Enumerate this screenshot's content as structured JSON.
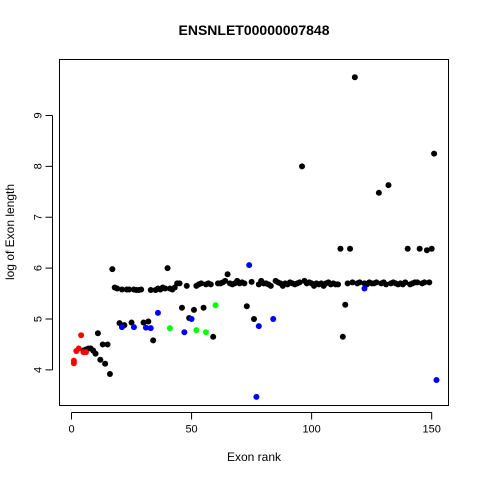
{
  "chart_data": {
    "type": "scatter",
    "title": "ENSNLET00000007848",
    "xlabel": "Exon rank",
    "ylabel": "log of Exon length",
    "xlim": [
      -5,
      157
    ],
    "ylim": [
      3.3,
      10.1
    ],
    "xticks": [
      0,
      50,
      100,
      150
    ],
    "yticks": [
      4,
      5,
      6,
      7,
      8,
      9
    ],
    "grid": false,
    "legend": "none",
    "series": [
      {
        "color": "#000000",
        "points": [
          [
            5,
            4.38
          ],
          [
            6,
            4.4
          ],
          [
            7,
            4.42
          ],
          [
            8,
            4.42
          ],
          [
            9,
            4.38
          ],
          [
            10,
            4.32
          ],
          [
            11,
            4.72
          ],
          [
            12,
            4.2
          ],
          [
            13,
            4.5
          ],
          [
            14,
            4.12
          ],
          [
            15,
            4.5
          ],
          [
            16,
            3.92
          ],
          [
            17,
            5.98
          ],
          [
            18,
            5.62
          ],
          [
            19,
            5.6
          ],
          [
            20,
            4.92
          ],
          [
            21,
            5.58
          ],
          [
            22,
            4.88
          ],
          [
            23,
            5.58
          ],
          [
            24,
            5.58
          ],
          [
            25,
            4.93
          ],
          [
            26,
            5.58
          ],
          [
            27,
            5.57
          ],
          [
            28,
            5.57
          ],
          [
            29,
            5.58
          ],
          [
            30,
            4.93
          ],
          [
            32,
            4.95
          ],
          [
            33,
            5.57
          ],
          [
            34,
            4.58
          ],
          [
            35,
            5.57
          ],
          [
            36,
            5.6
          ],
          [
            37,
            5.58
          ],
          [
            38,
            5.62
          ],
          [
            39,
            5.6
          ],
          [
            40,
            6.0
          ],
          [
            41,
            5.6
          ],
          [
            42,
            5.58
          ],
          [
            43,
            5.62
          ],
          [
            44,
            5.7
          ],
          [
            45,
            5.7
          ],
          [
            46,
            5.22
          ],
          [
            48,
            5.65
          ],
          [
            49,
            5.02
          ],
          [
            51,
            5.18
          ],
          [
            52,
            5.65
          ],
          [
            53,
            5.68
          ],
          [
            54,
            5.7
          ],
          [
            55,
            5.22
          ],
          [
            56,
            5.68
          ],
          [
            57,
            5.7
          ],
          [
            58,
            5.68
          ],
          [
            59,
            4.65
          ],
          [
            61,
            5.7
          ],
          [
            62,
            5.7
          ],
          [
            63,
            5.72
          ],
          [
            64,
            5.75
          ],
          [
            65,
            5.88
          ],
          [
            66,
            5.7
          ],
          [
            67,
            5.68
          ],
          [
            68,
            5.7
          ],
          [
            69,
            5.75
          ],
          [
            70,
            5.7
          ],
          [
            71,
            5.72
          ],
          [
            72,
            5.7
          ],
          [
            73,
            5.25
          ],
          [
            75,
            5.73
          ],
          [
            76,
            5.0
          ],
          [
            78,
            5.68
          ],
          [
            79,
            5.75
          ],
          [
            80,
            5.7
          ],
          [
            81,
            5.7
          ],
          [
            82,
            5.68
          ],
          [
            83,
            5.65
          ],
          [
            85,
            5.75
          ],
          [
            86,
            5.72
          ],
          [
            87,
            5.7
          ],
          [
            88,
            5.65
          ],
          [
            89,
            5.7
          ],
          [
            90,
            5.68
          ],
          [
            91,
            5.72
          ],
          [
            92,
            5.7
          ],
          [
            93,
            5.68
          ],
          [
            94,
            5.7
          ],
          [
            95,
            5.72
          ],
          [
            96,
            8.0
          ],
          [
            97,
            5.75
          ],
          [
            98,
            5.7
          ],
          [
            99,
            5.72
          ],
          [
            100,
            5.7
          ],
          [
            101,
            5.65
          ],
          [
            102,
            5.7
          ],
          [
            103,
            5.68
          ],
          [
            104,
            5.7
          ],
          [
            105,
            5.65
          ],
          [
            106,
            5.7
          ],
          [
            107,
            5.72
          ],
          [
            108,
            5.68
          ],
          [
            109,
            5.7
          ],
          [
            110,
            5.68
          ],
          [
            111,
            5.68
          ],
          [
            112,
            6.38
          ],
          [
            113,
            4.65
          ],
          [
            114,
            5.28
          ],
          [
            115,
            5.7
          ],
          [
            116,
            6.38
          ],
          [
            117,
            5.72
          ],
          [
            118,
            9.75
          ],
          [
            119,
            5.7
          ],
          [
            120,
            5.72
          ],
          [
            122,
            5.7
          ],
          [
            123,
            5.68
          ],
          [
            124,
            5.72
          ],
          [
            125,
            5.7
          ],
          [
            126,
            5.7
          ],
          [
            127,
            5.72
          ],
          [
            128,
            7.48
          ],
          [
            129,
            5.7
          ],
          [
            130,
            5.72
          ],
          [
            131,
            5.68
          ],
          [
            132,
            7.63
          ],
          [
            133,
            5.7
          ],
          [
            134,
            5.72
          ],
          [
            135,
            5.7
          ],
          [
            136,
            5.68
          ],
          [
            137,
            5.7
          ],
          [
            138,
            5.68
          ],
          [
            139,
            5.72
          ],
          [
            140,
            6.38
          ],
          [
            141,
            5.68
          ],
          [
            142,
            5.7
          ],
          [
            143,
            5.72
          ],
          [
            144,
            5.72
          ],
          [
            145,
            6.38
          ],
          [
            146,
            5.7
          ],
          [
            147,
            5.72
          ],
          [
            148,
            6.35
          ],
          [
            149,
            5.72
          ],
          [
            150,
            6.38
          ],
          [
            151,
            8.25
          ]
        ]
      },
      {
        "color": "#ff0000",
        "points": [
          [
            1,
            4.13
          ],
          [
            1,
            4.18
          ],
          [
            2,
            4.37
          ],
          [
            3,
            4.42
          ],
          [
            4,
            4.68
          ],
          [
            5,
            4.35
          ],
          [
            6,
            4.35
          ]
        ]
      },
      {
        "color": "#0000ff",
        "points": [
          [
            21,
            4.84
          ],
          [
            26,
            4.84
          ],
          [
            31,
            4.83
          ],
          [
            33,
            4.82
          ],
          [
            36,
            5.12
          ],
          [
            47,
            4.74
          ],
          [
            50,
            5.0
          ],
          [
            74,
            6.06
          ],
          [
            77,
            3.47
          ],
          [
            78,
            4.86
          ],
          [
            84,
            5.0
          ],
          [
            122,
            5.6
          ],
          [
            152,
            3.8
          ]
        ]
      },
      {
        "color": "#00ff00",
        "points": [
          [
            41,
            4.82
          ],
          [
            52,
            4.78
          ],
          [
            56,
            4.74
          ],
          [
            60,
            5.27
          ]
        ]
      }
    ]
  }
}
